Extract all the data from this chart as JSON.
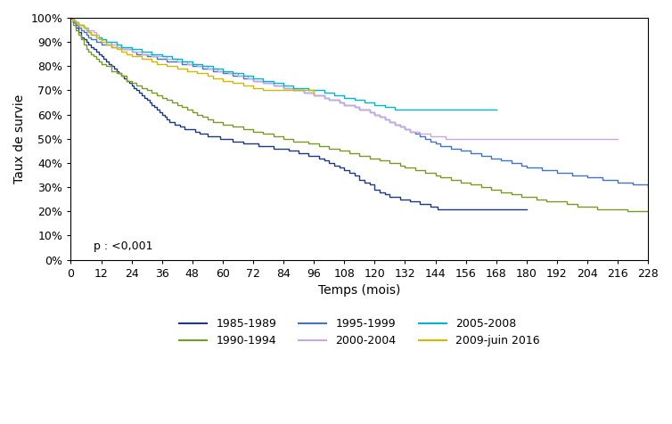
{
  "title": "",
  "xlabel": "Temps (mois)",
  "ylabel": "Taux de survie",
  "xlim": [
    0,
    228
  ],
  "ylim": [
    0.0,
    1.0
  ],
  "xticks": [
    0,
    12,
    24,
    36,
    48,
    60,
    72,
    84,
    96,
    108,
    120,
    132,
    144,
    156,
    168,
    180,
    192,
    204,
    216,
    228
  ],
  "yticks": [
    0.0,
    0.1,
    0.2,
    0.3,
    0.4,
    0.5,
    0.6,
    0.7,
    0.8,
    0.9,
    1.0
  ],
  "annotation": "p : <0,001",
  "background_color": "#ffffff",
  "series": {
    "1985-1989": {
      "color": "#1f3a7a",
      "times": [
        0,
        1,
        2,
        3,
        4,
        5,
        6,
        7,
        8,
        9,
        10,
        11,
        12,
        13,
        14,
        15,
        16,
        17,
        18,
        19,
        20,
        21,
        22,
        23,
        24,
        25,
        26,
        27,
        28,
        29,
        30,
        31,
        32,
        33,
        34,
        35,
        36,
        37,
        38,
        39,
        40,
        41,
        42,
        43,
        44,
        45,
        46,
        47,
        48,
        49,
        50,
        51,
        52,
        53,
        54,
        55,
        56,
        57,
        58,
        59,
        60,
        62,
        64,
        66,
        68,
        70,
        72,
        74,
        76,
        78,
        80,
        82,
        84,
        86,
        88,
        90,
        92,
        94,
        96,
        98,
        100,
        102,
        104,
        106,
        108,
        110,
        112,
        114,
        116,
        118,
        120,
        122,
        124,
        126,
        128,
        130,
        132,
        134,
        136,
        138,
        140,
        142,
        144,
        145,
        146,
        147,
        148,
        149,
        150,
        155,
        160,
        165,
        170,
        175,
        180
      ],
      "survival": [
        1.0,
        0.98,
        0.96,
        0.94,
        0.92,
        0.91,
        0.9,
        0.89,
        0.88,
        0.87,
        0.86,
        0.85,
        0.84,
        0.83,
        0.82,
        0.81,
        0.8,
        0.79,
        0.78,
        0.77,
        0.76,
        0.75,
        0.74,
        0.73,
        0.72,
        0.71,
        0.7,
        0.69,
        0.68,
        0.67,
        0.66,
        0.65,
        0.64,
        0.63,
        0.62,
        0.61,
        0.6,
        0.59,
        0.58,
        0.57,
        0.57,
        0.56,
        0.56,
        0.55,
        0.55,
        0.54,
        0.54,
        0.54,
        0.54,
        0.53,
        0.53,
        0.52,
        0.52,
        0.52,
        0.51,
        0.51,
        0.51,
        0.51,
        0.51,
        0.5,
        0.5,
        0.5,
        0.49,
        0.49,
        0.48,
        0.48,
        0.48,
        0.47,
        0.47,
        0.47,
        0.46,
        0.46,
        0.46,
        0.45,
        0.45,
        0.44,
        0.44,
        0.43,
        0.43,
        0.42,
        0.41,
        0.4,
        0.39,
        0.38,
        0.37,
        0.36,
        0.35,
        0.33,
        0.32,
        0.31,
        0.29,
        0.28,
        0.27,
        0.26,
        0.26,
        0.25,
        0.25,
        0.24,
        0.24,
        0.23,
        0.23,
        0.22,
        0.22,
        0.21,
        0.21,
        0.21,
        0.21,
        0.21,
        0.21,
        0.21,
        0.21,
        0.21,
        0.21,
        0.21,
        0.21
      ]
    },
    "1990-1994": {
      "color": "#7a9a28",
      "times": [
        0,
        1,
        2,
        3,
        4,
        5,
        6,
        7,
        8,
        9,
        10,
        11,
        12,
        14,
        16,
        18,
        20,
        22,
        24,
        26,
        28,
        30,
        32,
        34,
        36,
        38,
        40,
        42,
        44,
        46,
        48,
        50,
        52,
        54,
        56,
        58,
        60,
        62,
        64,
        66,
        68,
        70,
        72,
        74,
        76,
        78,
        80,
        82,
        84,
        86,
        88,
        90,
        92,
        94,
        96,
        98,
        100,
        102,
        104,
        106,
        108,
        110,
        112,
        114,
        116,
        118,
        120,
        122,
        124,
        126,
        128,
        130,
        132,
        134,
        136,
        138,
        140,
        142,
        144,
        146,
        148,
        150,
        152,
        154,
        156,
        158,
        160,
        162,
        164,
        166,
        168,
        170,
        172,
        174,
        176,
        178,
        180,
        184,
        188,
        192,
        196,
        200,
        204,
        208,
        212,
        216,
        220,
        224,
        228
      ],
      "survival": [
        1.0,
        0.97,
        0.95,
        0.93,
        0.91,
        0.89,
        0.87,
        0.86,
        0.85,
        0.84,
        0.83,
        0.82,
        0.81,
        0.8,
        0.78,
        0.77,
        0.76,
        0.74,
        0.73,
        0.72,
        0.71,
        0.7,
        0.69,
        0.68,
        0.67,
        0.66,
        0.65,
        0.64,
        0.63,
        0.62,
        0.61,
        0.6,
        0.59,
        0.58,
        0.57,
        0.57,
        0.56,
        0.56,
        0.55,
        0.55,
        0.54,
        0.54,
        0.53,
        0.53,
        0.52,
        0.52,
        0.51,
        0.51,
        0.5,
        0.5,
        0.49,
        0.49,
        0.49,
        0.48,
        0.48,
        0.47,
        0.47,
        0.46,
        0.46,
        0.45,
        0.45,
        0.44,
        0.44,
        0.43,
        0.43,
        0.42,
        0.42,
        0.41,
        0.41,
        0.4,
        0.4,
        0.39,
        0.38,
        0.38,
        0.37,
        0.37,
        0.36,
        0.36,
        0.35,
        0.34,
        0.34,
        0.33,
        0.33,
        0.32,
        0.32,
        0.31,
        0.31,
        0.3,
        0.3,
        0.29,
        0.29,
        0.28,
        0.28,
        0.27,
        0.27,
        0.26,
        0.26,
        0.25,
        0.24,
        0.24,
        0.23,
        0.22,
        0.22,
        0.21,
        0.21,
        0.21,
        0.2,
        0.2,
        0.2
      ]
    },
    "1995-1999": {
      "color": "#4472c4",
      "times": [
        0,
        1,
        2,
        3,
        4,
        5,
        6,
        7,
        8,
        9,
        10,
        11,
        12,
        14,
        16,
        18,
        20,
        22,
        24,
        26,
        28,
        30,
        32,
        34,
        36,
        38,
        40,
        42,
        44,
        46,
        48,
        50,
        52,
        54,
        56,
        58,
        60,
        62,
        64,
        66,
        68,
        70,
        72,
        74,
        76,
        78,
        80,
        82,
        84,
        86,
        88,
        90,
        92,
        94,
        96,
        98,
        100,
        102,
        104,
        106,
        108,
        110,
        112,
        114,
        116,
        118,
        120,
        122,
        124,
        126,
        128,
        130,
        132,
        134,
        136,
        138,
        140,
        142,
        144,
        146,
        148,
        150,
        152,
        154,
        156,
        158,
        160,
        162,
        164,
        166,
        168,
        170,
        172,
        174,
        176,
        178,
        180,
        183,
        186,
        189,
        192,
        195,
        198,
        201,
        204,
        207,
        210,
        213,
        216,
        219,
        222,
        225,
        228
      ],
      "survival": [
        1.0,
        0.98,
        0.97,
        0.96,
        0.95,
        0.94,
        0.93,
        0.92,
        0.91,
        0.91,
        0.9,
        0.9,
        0.89,
        0.89,
        0.88,
        0.88,
        0.87,
        0.87,
        0.86,
        0.85,
        0.85,
        0.84,
        0.84,
        0.83,
        0.83,
        0.82,
        0.82,
        0.82,
        0.81,
        0.81,
        0.8,
        0.8,
        0.79,
        0.79,
        0.78,
        0.78,
        0.77,
        0.77,
        0.76,
        0.76,
        0.75,
        0.75,
        0.74,
        0.74,
        0.73,
        0.73,
        0.72,
        0.72,
        0.71,
        0.71,
        0.7,
        0.7,
        0.69,
        0.69,
        0.68,
        0.68,
        0.67,
        0.66,
        0.66,
        0.65,
        0.64,
        0.64,
        0.63,
        0.62,
        0.62,
        0.61,
        0.6,
        0.59,
        0.58,
        0.57,
        0.56,
        0.55,
        0.54,
        0.53,
        0.52,
        0.51,
        0.5,
        0.49,
        0.48,
        0.47,
        0.47,
        0.46,
        0.46,
        0.45,
        0.45,
        0.44,
        0.44,
        0.43,
        0.43,
        0.42,
        0.42,
        0.41,
        0.41,
        0.4,
        0.4,
        0.39,
        0.38,
        0.38,
        0.37,
        0.37,
        0.36,
        0.36,
        0.35,
        0.35,
        0.34,
        0.34,
        0.33,
        0.33,
        0.32,
        0.32,
        0.31,
        0.31,
        0.3
      ]
    },
    "2000-2004": {
      "color": "#c9a8e0",
      "times": [
        0,
        1,
        2,
        3,
        4,
        5,
        6,
        7,
        8,
        9,
        10,
        11,
        12,
        14,
        16,
        18,
        20,
        22,
        24,
        26,
        28,
        30,
        32,
        34,
        36,
        38,
        40,
        42,
        44,
        46,
        48,
        50,
        52,
        54,
        56,
        58,
        60,
        62,
        64,
        66,
        68,
        70,
        72,
        74,
        76,
        78,
        80,
        82,
        84,
        86,
        88,
        90,
        92,
        94,
        96,
        98,
        100,
        102,
        104,
        106,
        108,
        110,
        112,
        114,
        116,
        118,
        120,
        122,
        124,
        126,
        128,
        130,
        132,
        134,
        136,
        138,
        140,
        142,
        144,
        148,
        152,
        156,
        160,
        164,
        168,
        172,
        176,
        180,
        184,
        188,
        192,
        196,
        200,
        204,
        208,
        212,
        216
      ],
      "survival": [
        1.0,
        0.99,
        0.98,
        0.97,
        0.97,
        0.96,
        0.96,
        0.95,
        0.95,
        0.94,
        0.93,
        0.92,
        0.91,
        0.9,
        0.89,
        0.88,
        0.87,
        0.87,
        0.86,
        0.86,
        0.85,
        0.85,
        0.84,
        0.84,
        0.84,
        0.83,
        0.83,
        0.82,
        0.82,
        0.81,
        0.81,
        0.8,
        0.8,
        0.79,
        0.79,
        0.78,
        0.78,
        0.77,
        0.77,
        0.76,
        0.76,
        0.75,
        0.74,
        0.74,
        0.73,
        0.73,
        0.72,
        0.72,
        0.71,
        0.71,
        0.7,
        0.7,
        0.69,
        0.69,
        0.68,
        0.68,
        0.67,
        0.66,
        0.66,
        0.65,
        0.64,
        0.64,
        0.63,
        0.62,
        0.62,
        0.61,
        0.6,
        0.59,
        0.58,
        0.57,
        0.56,
        0.55,
        0.54,
        0.53,
        0.53,
        0.52,
        0.52,
        0.51,
        0.51,
        0.5,
        0.5,
        0.5,
        0.5,
        0.5,
        0.5,
        0.5,
        0.5,
        0.5,
        0.5,
        0.5,
        0.5,
        0.5,
        0.5,
        0.5,
        0.5,
        0.5,
        0.5
      ]
    },
    "2005-2008": {
      "color": "#00b5c8",
      "times": [
        0,
        1,
        2,
        3,
        4,
        5,
        6,
        7,
        8,
        9,
        10,
        11,
        12,
        14,
        16,
        18,
        20,
        22,
        24,
        26,
        28,
        30,
        32,
        34,
        36,
        38,
        40,
        42,
        44,
        46,
        48,
        50,
        52,
        54,
        56,
        58,
        60,
        62,
        64,
        66,
        68,
        70,
        72,
        74,
        76,
        78,
        80,
        82,
        84,
        86,
        88,
        90,
        92,
        94,
        96,
        98,
        100,
        102,
        104,
        106,
        108,
        110,
        112,
        114,
        116,
        118,
        120,
        122,
        124,
        126,
        128,
        130,
        132,
        134,
        136,
        138,
        140,
        142,
        144,
        148,
        152,
        156,
        160,
        164,
        168
      ],
      "survival": [
        1.0,
        0.99,
        0.98,
        0.97,
        0.97,
        0.96,
        0.95,
        0.94,
        0.93,
        0.93,
        0.92,
        0.92,
        0.91,
        0.9,
        0.9,
        0.89,
        0.88,
        0.88,
        0.87,
        0.87,
        0.86,
        0.86,
        0.85,
        0.85,
        0.84,
        0.84,
        0.83,
        0.83,
        0.82,
        0.82,
        0.81,
        0.81,
        0.8,
        0.8,
        0.79,
        0.79,
        0.78,
        0.78,
        0.77,
        0.77,
        0.76,
        0.76,
        0.75,
        0.75,
        0.74,
        0.74,
        0.73,
        0.73,
        0.72,
        0.72,
        0.71,
        0.71,
        0.71,
        0.7,
        0.7,
        0.7,
        0.69,
        0.69,
        0.68,
        0.68,
        0.67,
        0.67,
        0.66,
        0.66,
        0.65,
        0.65,
        0.64,
        0.64,
        0.63,
        0.63,
        0.62,
        0.62,
        0.62,
        0.62,
        0.62,
        0.62,
        0.62,
        0.62,
        0.62,
        0.62,
        0.62,
        0.62,
        0.62,
        0.62,
        0.62
      ]
    },
    "2009-juin 2016": {
      "color": "#d4b800",
      "times": [
        0,
        1,
        2,
        3,
        4,
        5,
        6,
        7,
        8,
        9,
        10,
        11,
        12,
        14,
        16,
        18,
        20,
        22,
        24,
        26,
        28,
        30,
        32,
        34,
        36,
        38,
        40,
        42,
        44,
        46,
        48,
        50,
        52,
        54,
        56,
        58,
        60,
        62,
        64,
        66,
        68,
        70,
        72,
        74,
        76,
        78,
        80,
        82,
        84,
        86,
        88,
        90,
        92,
        94,
        96
      ],
      "survival": [
        1.0,
        0.99,
        0.98,
        0.97,
        0.97,
        0.96,
        0.95,
        0.94,
        0.93,
        0.93,
        0.92,
        0.91,
        0.9,
        0.89,
        0.88,
        0.87,
        0.86,
        0.85,
        0.84,
        0.84,
        0.83,
        0.83,
        0.82,
        0.81,
        0.81,
        0.8,
        0.8,
        0.79,
        0.79,
        0.78,
        0.78,
        0.77,
        0.77,
        0.76,
        0.75,
        0.75,
        0.74,
        0.74,
        0.73,
        0.73,
        0.72,
        0.72,
        0.71,
        0.71,
        0.7,
        0.7,
        0.7,
        0.7,
        0.7,
        0.7,
        0.7,
        0.7,
        0.7,
        0.7,
        0.69
      ]
    }
  },
  "legend_order": [
    "1985-1989",
    "1990-1994",
    "1995-1999",
    "2000-2004",
    "2005-2008",
    "2009-juin 2016"
  ]
}
